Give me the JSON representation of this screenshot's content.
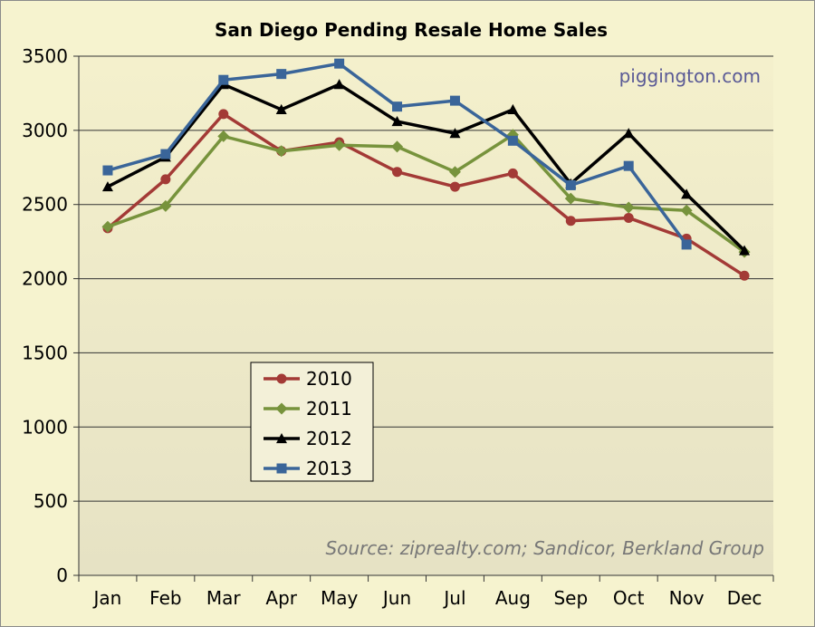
{
  "chart_data": {
    "type": "line",
    "title": "San Diego Pending Resale Home Sales",
    "watermark": "piggington.com",
    "source": "Source: ziprealty.com; Sandicor, Berkland Group",
    "categories": [
      "Jan",
      "Feb",
      "Mar",
      "Apr",
      "May",
      "Jun",
      "Jul",
      "Aug",
      "Sep",
      "Oct",
      "Nov",
      "Dec"
    ],
    "y_ticks": [
      "0",
      "500",
      "1000",
      "1500",
      "2000",
      "2500",
      "3000",
      "3500"
    ],
    "ylim": [
      0,
      3500
    ],
    "grid": "horizontal",
    "legend_position": "center-left",
    "xlabel": "",
    "ylabel": "",
    "series": [
      {
        "name": "2010",
        "color": "#a33a36",
        "marker": "circle",
        "values": [
          2340,
          2670,
          3110,
          2860,
          2920,
          2720,
          2620,
          2710,
          2390,
          2410,
          2270,
          2020
        ]
      },
      {
        "name": "2011",
        "color": "#77933c",
        "marker": "diamond",
        "values": [
          2350,
          2490,
          2960,
          2860,
          2900,
          2890,
          2720,
          2970,
          2540,
          2480,
          2460,
          2180
        ]
      },
      {
        "name": "2012",
        "color": "#000000",
        "marker": "triangle",
        "values": [
          2620,
          2820,
          3310,
          3140,
          3310,
          3060,
          2980,
          3140,
          2640,
          2980,
          2570,
          2190
        ]
      },
      {
        "name": "2013",
        "color": "#3a6599",
        "marker": "square",
        "values": [
          2730,
          2840,
          3340,
          3380,
          3450,
          3160,
          3200,
          2930,
          2630,
          2760,
          2230,
          null
        ]
      }
    ]
  }
}
